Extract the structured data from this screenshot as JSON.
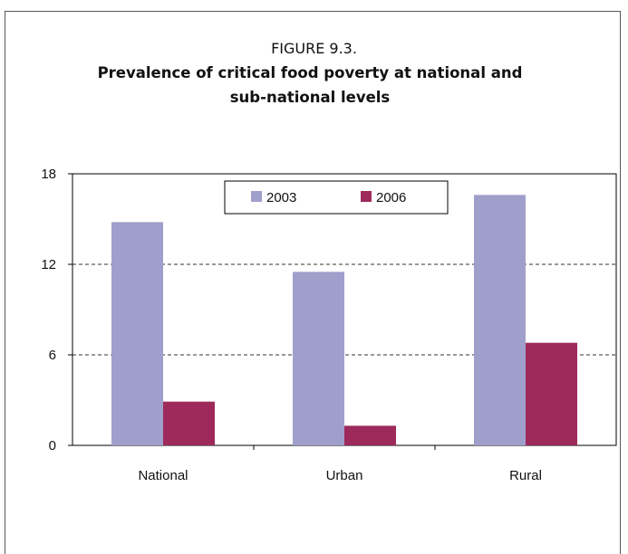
{
  "figure": {
    "label": "FIGURE 9.3.",
    "title": "Prevalence of critical food poverty at national and sub-national levels"
  },
  "chart_data": {
    "type": "bar",
    "categories": [
      "National",
      "Urban",
      "Rural"
    ],
    "series": [
      {
        "name": "2003",
        "values": [
          14.8,
          11.5,
          16.6
        ],
        "color": "#a09fcb"
      },
      {
        "name": "2006",
        "values": [
          2.9,
          1.3,
          6.8
        ],
        "color": "#9e2a5c"
      }
    ],
    "ylim": [
      0,
      18
    ],
    "yticks": [
      "0",
      "6",
      "12",
      "18"
    ],
    "grid": "dashed horizontal",
    "legend": "top-center"
  }
}
